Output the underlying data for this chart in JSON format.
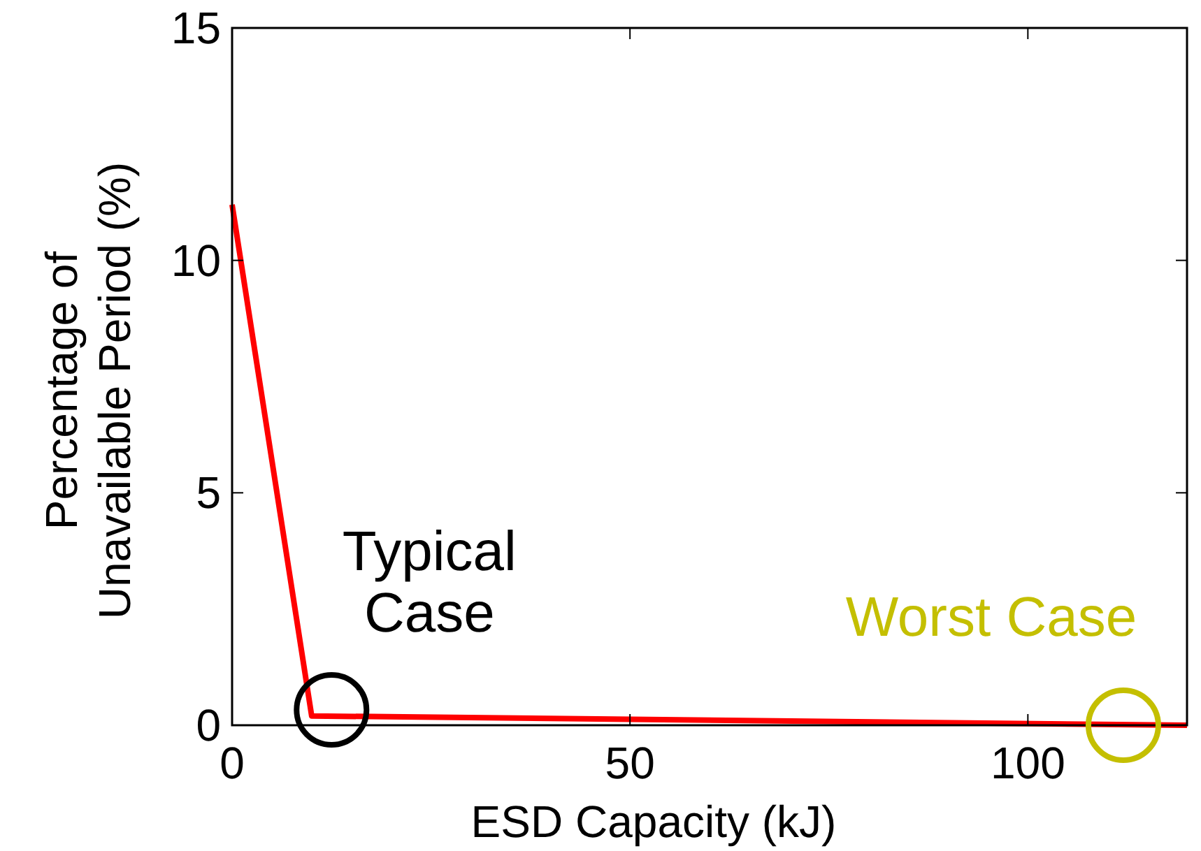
{
  "chart_data": {
    "type": "line",
    "xlabel": "ESD Capacity (kJ)",
    "ylabel": "Percentage of Unavailable Period (%)",
    "x": [
      0,
      10,
      120
    ],
    "series": [
      {
        "color": "#ff0000",
        "values": [
          11.2,
          0.2,
          0
        ]
      }
    ],
    "xlim": [
      0,
      120
    ],
    "xticks": [
      0,
      50,
      100
    ],
    "ylim": [
      0,
      15
    ],
    "yticks": [
      0,
      5,
      10,
      15
    ],
    "grid": false,
    "marker": "none",
    "line_style": "solid",
    "annotations": [
      {
        "text": "Typical Case",
        "x": 12.5,
        "y": 0.33
      },
      {
        "text": "Worst Case",
        "x": 112,
        "y": 0
      }
    ]
  }
}
